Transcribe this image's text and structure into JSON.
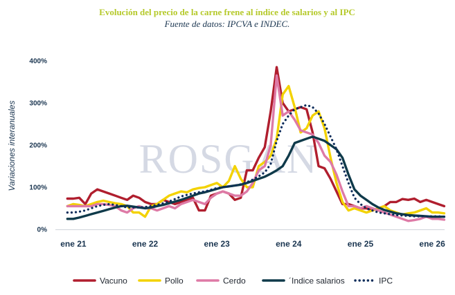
{
  "chart_data": {
    "type": "line",
    "title": "Evolución del precio de la carne frene al índice de salarios y al IPC",
    "subtitle": "Fuente de datos: IPCVA e INDEC.",
    "ylabel": "Variaciones interanuales",
    "xlabel": "",
    "ylim": [
      0,
      400
    ],
    "yticks": [
      0,
      100,
      200,
      300,
      400
    ],
    "ytick_labels": [
      "0%",
      "100%",
      "200%",
      "300%",
      "400%"
    ],
    "x_range": [
      -3,
      63
    ],
    "xticks": [
      0,
      12,
      24,
      36,
      48,
      60
    ],
    "xtick_labels": [
      "ene 21",
      "ene 22",
      "ene 23",
      "ene 24",
      "ene 25",
      "ene 26"
    ],
    "grid": false,
    "legend_position": "bottom",
    "watermark": "ROSGAN",
    "colors": {
      "title": "#b5c92a",
      "subtitle": "#1a3550",
      "axis_text": "#1a3550",
      "watermark": "#d5d9e4"
    },
    "series": [
      {
        "name": "Vacuno",
        "color": "#b01e2e",
        "style": "solid",
        "x_start": -1,
        "values": [
          73,
          73,
          75,
          60,
          85,
          95,
          90,
          85,
          80,
          75,
          70,
          80,
          75,
          65,
          60,
          60,
          70,
          65,
          60,
          65,
          70,
          75,
          45,
          45,
          80,
          85,
          90,
          85,
          70,
          75,
          140,
          140,
          170,
          195,
          280,
          385,
          300,
          280,
          285,
          290,
          285,
          230,
          150,
          145,
          120,
          90,
          60,
          60,
          55,
          50,
          50,
          45,
          50,
          55,
          65,
          65,
          72,
          70,
          73,
          65,
          70,
          65,
          60,
          55
        ]
      },
      {
        "name": "Pollo",
        "color": "#f3d200",
        "style": "solid",
        "x_start": -1,
        "values": [
          55,
          60,
          58,
          55,
          60,
          65,
          68,
          65,
          62,
          60,
          55,
          40,
          40,
          30,
          55,
          60,
          70,
          80,
          85,
          90,
          88,
          95,
          98,
          100,
          105,
          110,
          100,
          115,
          150,
          120,
          100,
          100,
          150,
          160,
          175,
          215,
          320,
          340,
          290,
          230,
          240,
          270,
          280,
          240,
          170,
          110,
          65,
          45,
          50,
          45,
          40,
          45,
          50,
          55,
          45,
          40,
          35,
          38,
          40,
          45,
          50,
          40,
          40,
          38
        ]
      },
      {
        "name": "Cerdo",
        "color": "#de7aa6",
        "style": "solid",
        "x_start": -1,
        "values": [
          55,
          55,
          55,
          55,
          55,
          60,
          60,
          58,
          55,
          45,
          40,
          50,
          55,
          50,
          50,
          45,
          50,
          55,
          50,
          60,
          65,
          70,
          65,
          60,
          75,
          85,
          90,
          85,
          80,
          80,
          90,
          110,
          140,
          150,
          200,
          365,
          270,
          280,
          260,
          235,
          230,
          225,
          205,
          175,
          160,
          130,
          90,
          55,
          55,
          50,
          55,
          50,
          45,
          40,
          35,
          30,
          25,
          20,
          22,
          25,
          30,
          25,
          25,
          23
        ]
      },
      {
        "name": "´Indice salarios",
        "color": "#0f3a4a",
        "style": "solid",
        "x_start": -1,
        "values": [
          25,
          25,
          28,
          32,
          36,
          40,
          44,
          48,
          52,
          55,
          56,
          54,
          52,
          50,
          52,
          55,
          58,
          62,
          66,
          70,
          75,
          80,
          85,
          88,
          92,
          96,
          100,
          102,
          104,
          106,
          110,
          115,
          120,
          125,
          132,
          140,
          150,
          175,
          205,
          210,
          215,
          220,
          215,
          210,
          200,
          190,
          170,
          130,
          95,
          80,
          70,
          60,
          52,
          46,
          42,
          38,
          36,
          34,
          33,
          32,
          31,
          30,
          30,
          30
        ]
      },
      {
        "name": "IPC",
        "color": "#0d2c5a",
        "style": "dotted",
        "x_start": -1,
        "values": [
          40,
          40,
          42,
          45,
          50,
          55,
          58,
          60,
          58,
          55,
          52,
          52,
          52,
          53,
          55,
          58,
          62,
          66,
          72,
          78,
          82,
          85,
          88,
          90,
          94,
          98,
          100,
          102,
          104,
          107,
          112,
          118,
          126,
          135,
          155,
          210,
          250,
          270,
          285,
          290,
          295,
          290,
          275,
          250,
          220,
          190,
          150,
          110,
          75,
          60,
          50,
          45,
          40,
          38,
          36,
          34,
          33,
          32,
          31,
          31,
          31,
          31,
          31,
          30
        ]
      }
    ]
  }
}
